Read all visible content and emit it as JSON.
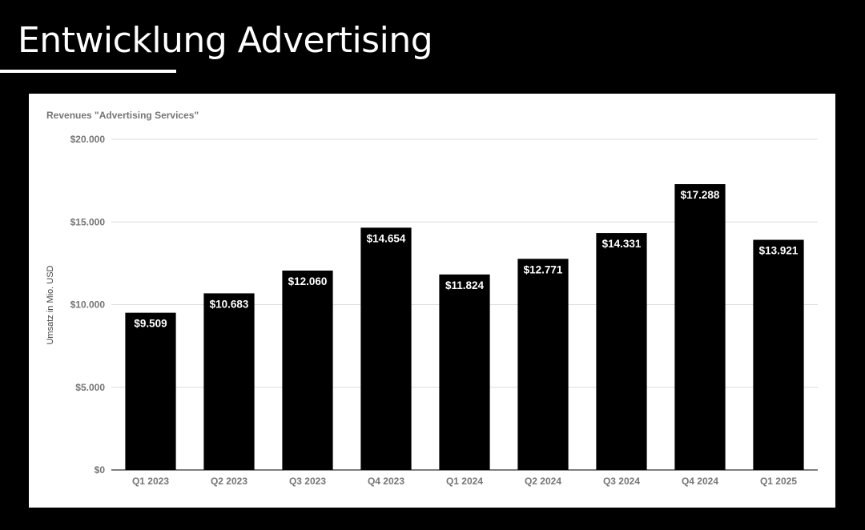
{
  "slide": {
    "title": "Entwicklung Advertising"
  },
  "colors": {
    "background": "#000000",
    "card": "#ffffff",
    "bar": "#000000",
    "bar_label": "#ffffff",
    "grid": "#dddddd",
    "axis_text": "#757575"
  },
  "chart_data": {
    "type": "bar",
    "title": "Revenues \"Advertising Services\"",
    "xlabel": "",
    "ylabel": "Umsatz in Mio. USD",
    "categories": [
      "Q1 2023",
      "Q2 2023",
      "Q3 2023",
      "Q4 2023",
      "Q1 2024",
      "Q2 2024",
      "Q3 2024",
      "Q4 2024",
      "Q1 2025"
    ],
    "values": [
      9509,
      10683,
      12060,
      14654,
      11824,
      12771,
      14331,
      17288,
      13921
    ],
    "data_labels": [
      "$9.509",
      "$10.683",
      "$12.060",
      "$14.654",
      "$11.824",
      "$12.771",
      "$14.331",
      "$17.288",
      "$13.921"
    ],
    "ylim": [
      0,
      20000
    ],
    "yticks": [
      0,
      5000,
      10000,
      15000,
      20000
    ],
    "ytick_labels": [
      "$0",
      "$5.000",
      "$10.000",
      "$15.000",
      "$20.000"
    ],
    "grid": true,
    "legend": "none"
  }
}
